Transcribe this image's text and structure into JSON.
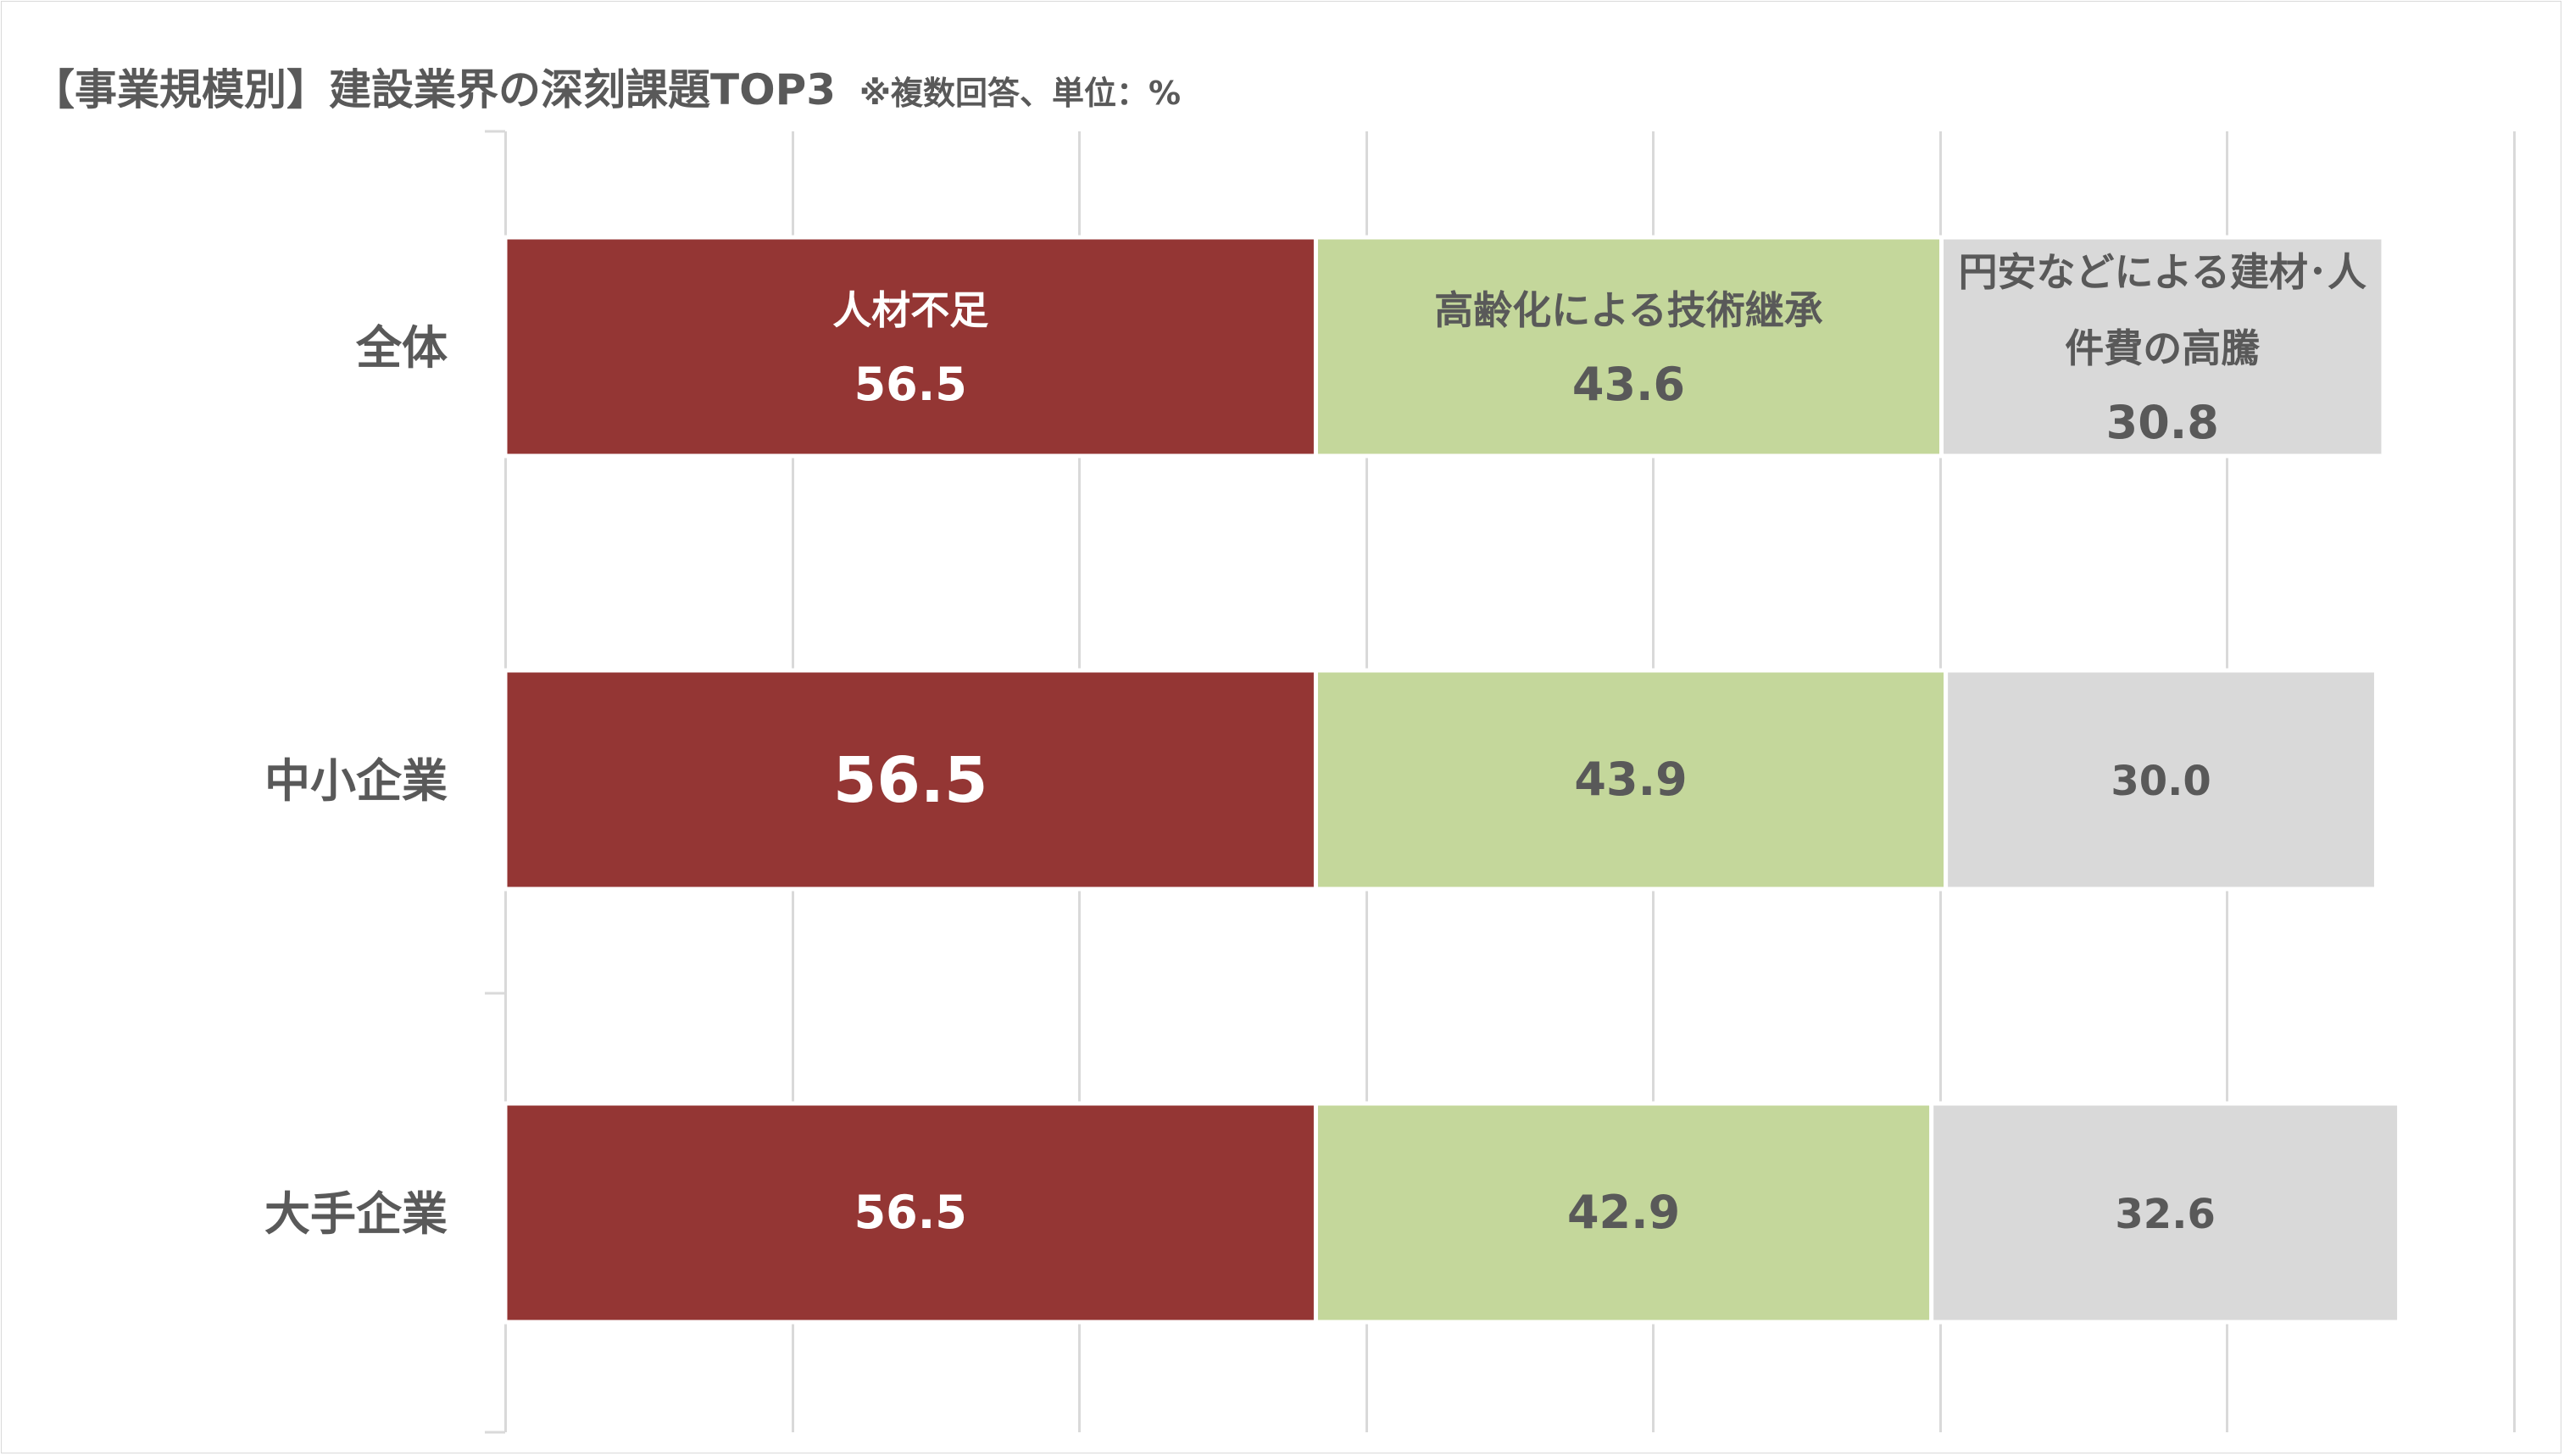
{
  "title": {
    "main": "【事業規模別】建設業界の深刻課題TOP3",
    "note": "※複数回答、単位：%"
  },
  "colors": {
    "series1": "#943634",
    "series2": "#c4d79b",
    "series3": "#d9d9d9",
    "gridline": "#d9d9d9",
    "label_dark": "#595959",
    "label_light": "#ffffff"
  },
  "chart_data": {
    "type": "bar",
    "orientation": "horizontal",
    "stacked": true,
    "categories": [
      "全体",
      "中小企業",
      "大手企業"
    ],
    "series": [
      {
        "name": "人材不足",
        "values": [
          56.5,
          56.5,
          56.5
        ]
      },
      {
        "name": "高齢化による技術継承",
        "values": [
          43.6,
          43.9,
          42.9
        ]
      },
      {
        "name": "円安などによる建材･人件費の高騰",
        "values": [
          30.8,
          30.0,
          32.6
        ]
      }
    ],
    "series_name_lines": [
      [
        "人材不足"
      ],
      [
        "高齢化による技術継承"
      ],
      [
        "円安などによる建材･人",
        "件費の高騰"
      ]
    ],
    "value_labels": [
      [
        "56.5",
        "43.6",
        "30.8"
      ],
      [
        "56.5",
        "43.9",
        "30.0"
      ],
      [
        "56.5",
        "42.9",
        "32.6"
      ]
    ],
    "series_names_shown_in_row": 0,
    "xlim": [
      0,
      140
    ],
    "grid": true,
    "legend": "none"
  }
}
